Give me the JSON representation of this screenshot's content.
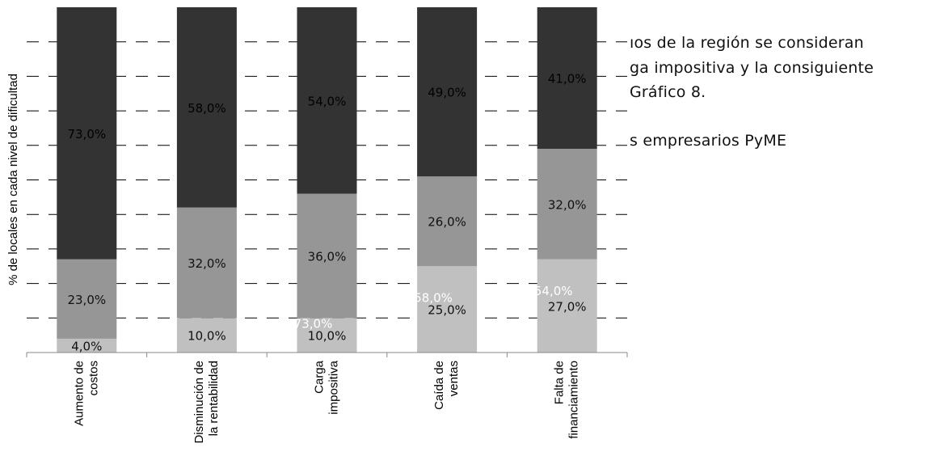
{
  "background_text": {
    "line1": "ıos de la región se consideran",
    "line2": "ga impositiva y la consiguiente",
    "line3": "Gráfico 8.",
    "line4": "s empresarios PyME"
  },
  "chart_data": {
    "type": "bar",
    "stacked": true,
    "percent": true,
    "title": "",
    "xlabel": "",
    "ylabel": "% de locales en cada nivel de dificultad",
    "ylim": [
      0,
      100
    ],
    "grid": true,
    "categories": [
      "Aumento de costos",
      "Disminución de la rentabilidad",
      "Carga impositiva",
      "Caída de ventas",
      "Falta de financiamiento"
    ],
    "category_lines": [
      [
        "Aumento de",
        "costos"
      ],
      [
        "Disminución de",
        "la rentabilidad"
      ],
      [
        "Carga",
        "impositiva"
      ],
      [
        "Caída de",
        "ventas"
      ],
      [
        "Falta de",
        "financiamiento"
      ]
    ],
    "series": [
      {
        "values": [
          4,
          10,
          10,
          25,
          27
        ],
        "labels": [
          "4,0%",
          "10,0%",
          "10,0%",
          "25,0%",
          "27,0%"
        ],
        "color": "#c0c0c0"
      },
      {
        "values": [
          23,
          32,
          36,
          26,
          32
        ],
        "labels": [
          "23,0%",
          "32,0%",
          "36,0%",
          "26,0%",
          "32,0%"
        ],
        "color": "#969696"
      },
      {
        "values": [
          73,
          58,
          54,
          49,
          41
        ],
        "labels": [
          "73,0%",
          "58,0%",
          "54,0%",
          "49,0%",
          "41,0%"
        ],
        "color": "#333333"
      }
    ],
    "stray_labels": [
      "73,0%",
      "58,0%",
      "54,0%"
    ]
  }
}
